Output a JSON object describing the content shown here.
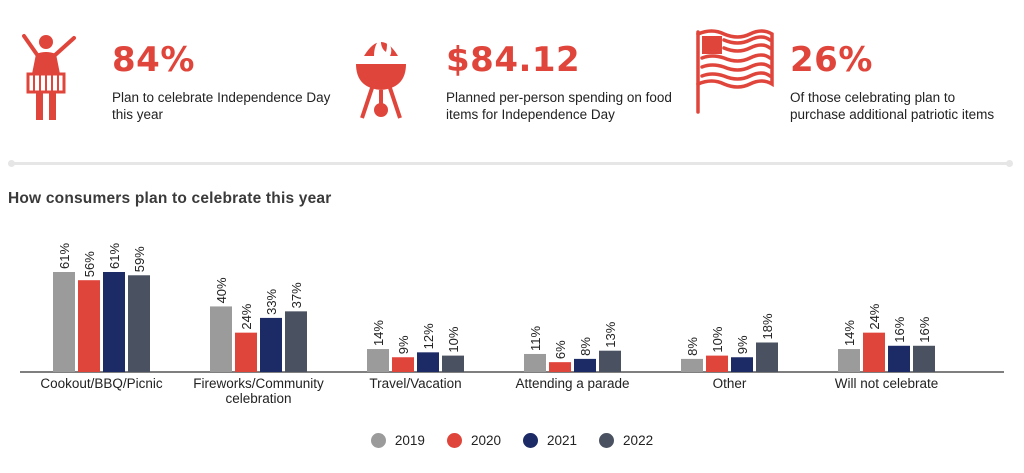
{
  "stats": [
    {
      "value": "84%",
      "desc": "Plan to celebrate Independence Day this year",
      "icon": "drummer-icon"
    },
    {
      "value": "$84.12",
      "desc": "Planned per-person spending on food items for Independence Day",
      "icon": "grill-icon"
    },
    {
      "value": "26%",
      "desc": "Of those celebrating plan to purchase additional patriotic items",
      "icon": "flag-icon"
    }
  ],
  "section_title": "How consumers plan to celebrate this year",
  "colors": {
    "accent": "#e0453b",
    "2019": "#9b9b9b",
    "2020": "#e0453b",
    "2021": "#1c2b66",
    "2022": "#4a5261"
  },
  "chart_data": {
    "type": "bar",
    "title": "How consumers plan to celebrate this year",
    "categories": [
      [
        "Cookout/BBQ/Picnic"
      ],
      [
        "Fireworks/Community",
        "celebration"
      ],
      [
        "Travel/Vacation"
      ],
      [
        "Attending a parade"
      ],
      [
        "Other"
      ],
      [
        "Will not celebrate"
      ]
    ],
    "series": [
      {
        "name": "2019",
        "color": "#9b9b9b",
        "values": [
          61,
          40,
          14,
          11,
          8,
          14
        ]
      },
      {
        "name": "2020",
        "color": "#e0453b",
        "values": [
          56,
          24,
          9,
          6,
          10,
          24
        ]
      },
      {
        "name": "2021",
        "color": "#1c2b66",
        "values": [
          61,
          33,
          12,
          8,
          9,
          16
        ]
      },
      {
        "name": "2022",
        "color": "#4a5261",
        "values": [
          59,
          37,
          10,
          13,
          18,
          16
        ]
      }
    ],
    "value_suffix": "%",
    "ylim": [
      0,
      61
    ],
    "legend": "bottom-center",
    "grid": false
  }
}
